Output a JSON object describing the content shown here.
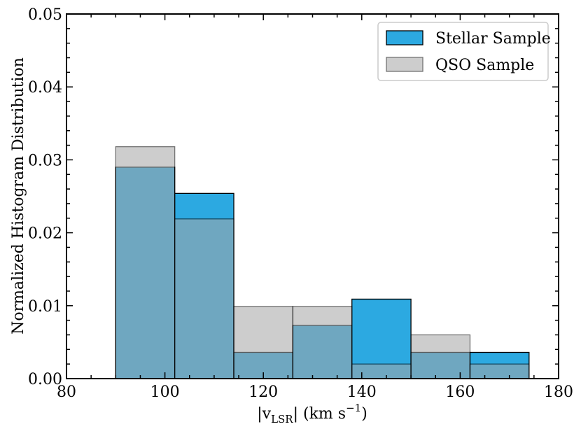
{
  "chart_data": {
    "type": "bar",
    "subtype": "overlaid-histogram",
    "title": "",
    "xlabel": "|v",
    "xlabel_sub": "LSR",
    "xlabel_units": "| (km s",
    "xlabel_sup": "−1",
    "xlabel_close": ")",
    "ylabel": "Normalized Histogram Distribution",
    "xlim": [
      80,
      180
    ],
    "ylim": [
      0,
      0.05
    ],
    "x_ticks": [
      80,
      100,
      120,
      140,
      160,
      180
    ],
    "x_tick_labels": [
      "80",
      "100",
      "120",
      "140",
      "160",
      "180"
    ],
    "y_ticks": [
      0,
      0.01,
      0.02,
      0.03,
      0.04,
      0.05
    ],
    "y_tick_labels": [
      "0.00",
      "0.01",
      "0.02",
      "0.03",
      "0.04",
      "0.05"
    ],
    "bin_edges": [
      90,
      102,
      114,
      126,
      138,
      150,
      162,
      174
    ],
    "series": [
      {
        "name": "Stellar Sample",
        "color": "#2ca9e1",
        "values": [
          0.029,
          0.0254,
          0.0036,
          0.0073,
          0.0109,
          0.0036,
          0.0036
        ]
      },
      {
        "name": "QSO Sample",
        "color": "#a6a6a6",
        "values": [
          0.0318,
          0.0219,
          0.0099,
          0.0099,
          0.002,
          0.006,
          0.002
        ]
      }
    ],
    "legend_position": "top-right",
    "grid": false
  }
}
